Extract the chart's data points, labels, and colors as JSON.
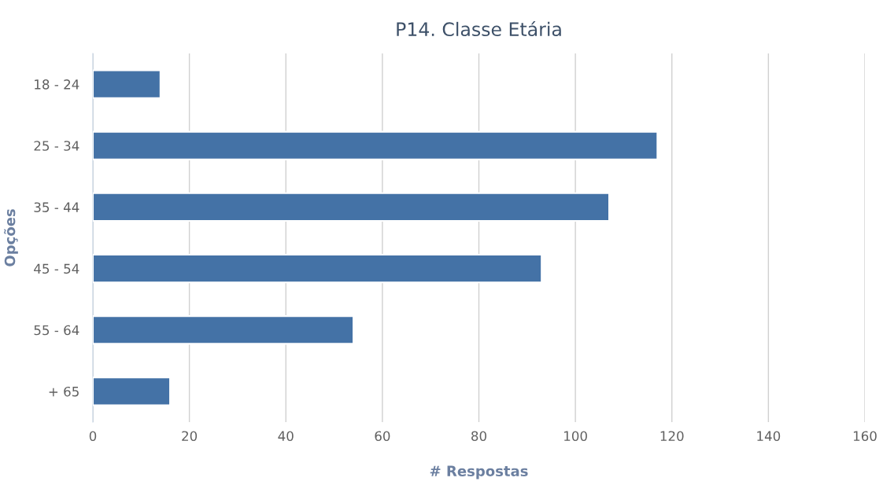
{
  "chart_data": {
    "type": "bar",
    "orientation": "horizontal",
    "title": "P14. Classe Etária",
    "xlabel": "# Respostas",
    "ylabel": "Opções",
    "categories": [
      "18 - 24",
      "25 - 34",
      "35 - 44",
      "45 - 54",
      "55 - 64",
      "+ 65"
    ],
    "values": [
      14,
      117,
      107,
      93,
      54,
      16
    ],
    "color": "#4472a6",
    "xlim": [
      0,
      160
    ],
    "xticks": [
      0,
      20,
      40,
      60,
      80,
      100,
      120,
      140,
      160
    ],
    "grid": "x"
  }
}
